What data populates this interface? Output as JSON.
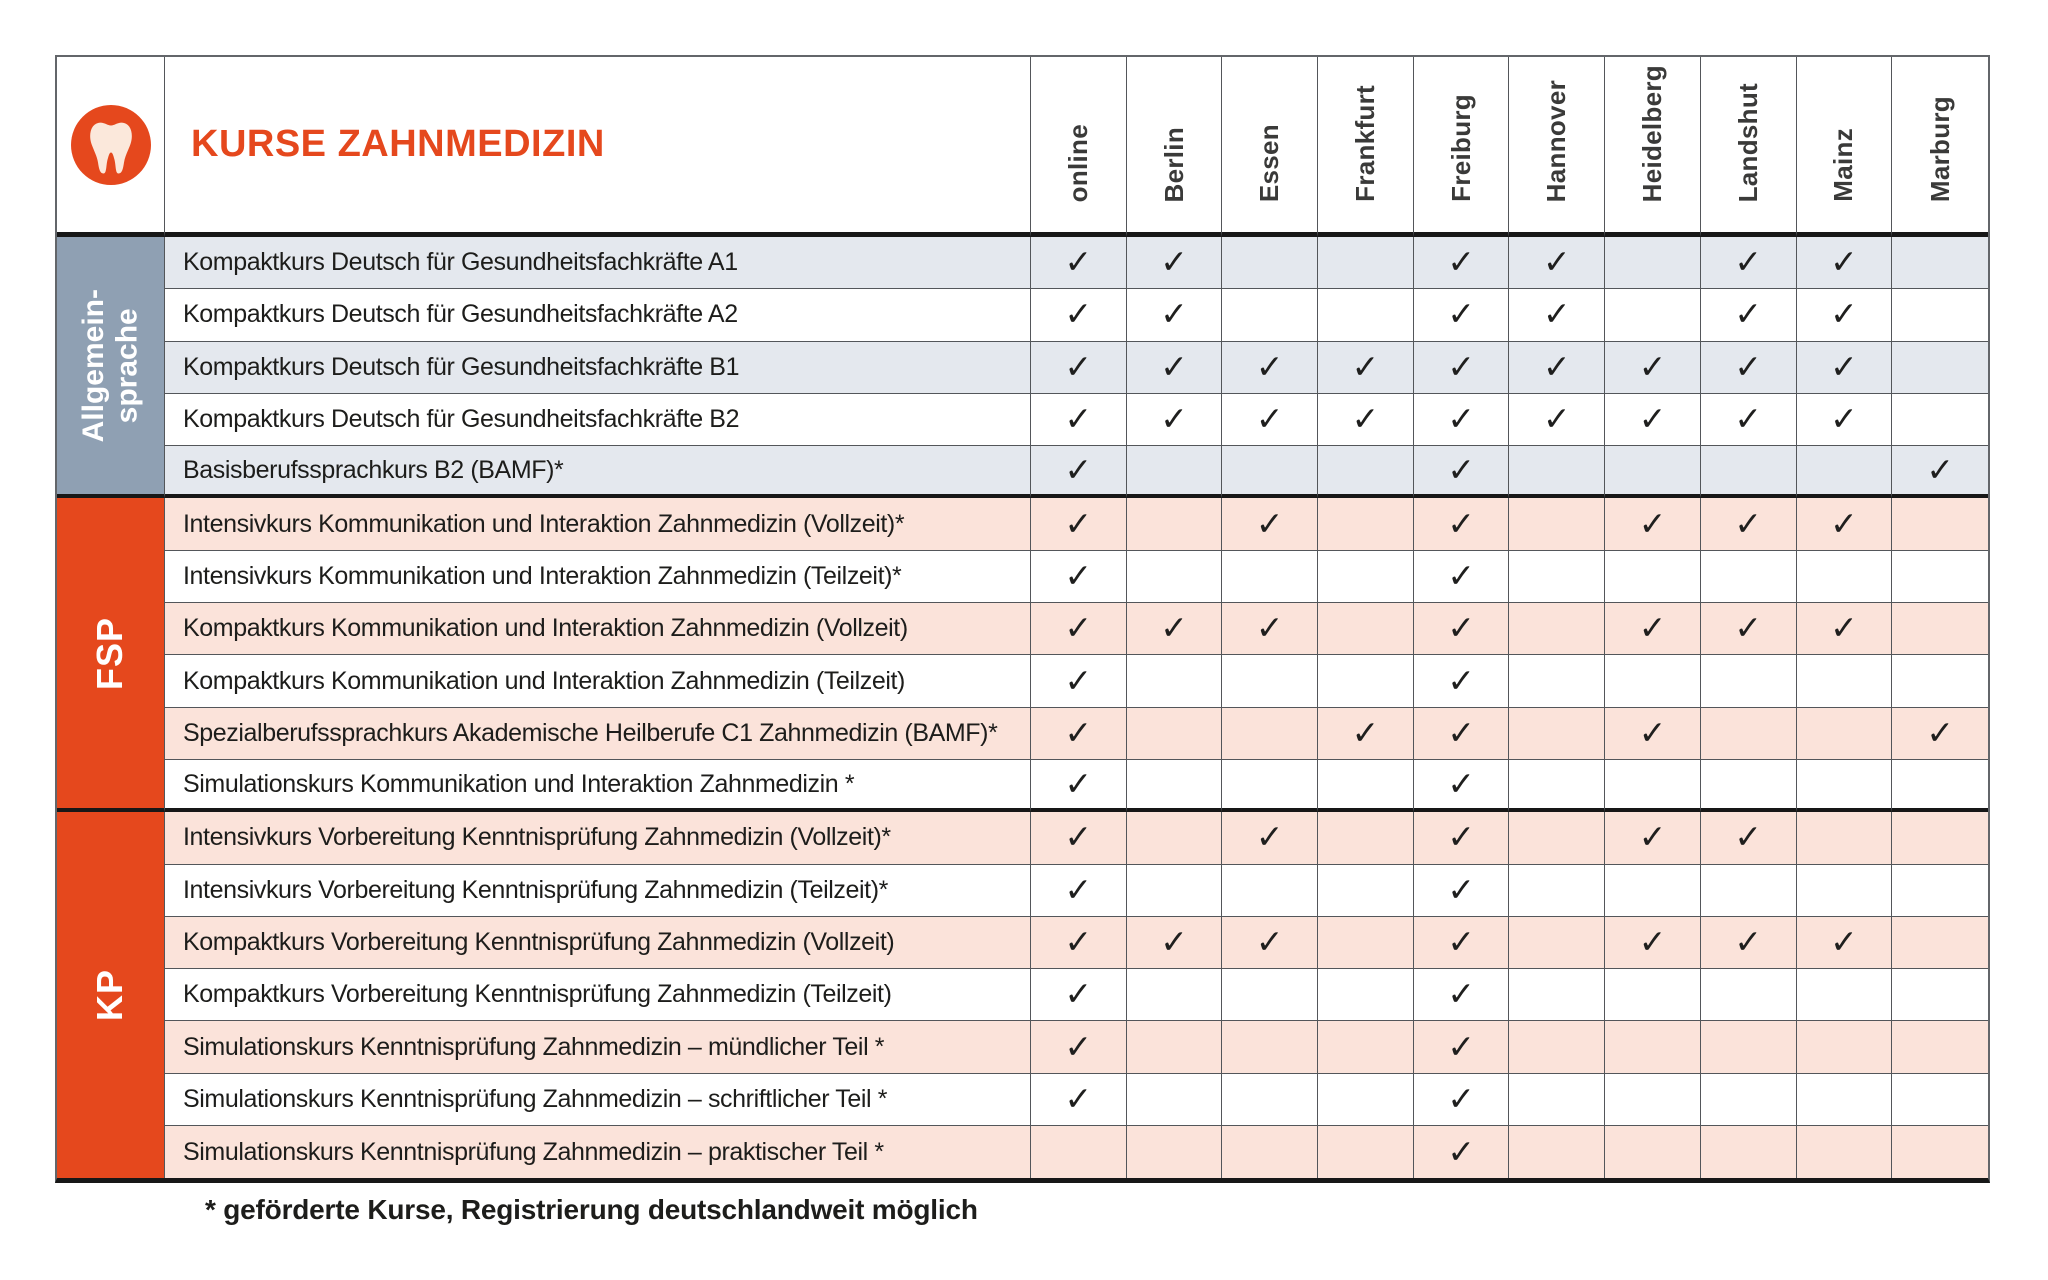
{
  "header": {
    "title": "KURSE ZAHNMEDIZIN",
    "icon": "tooth-icon",
    "cities": [
      "online",
      "Berlin",
      "Essen",
      "Frankfurt",
      "Freiburg",
      "Hannover",
      "Heidelberg",
      "Landshut",
      "Mainz",
      "Marburg"
    ]
  },
  "check_glyph": "✓",
  "groups": [
    {
      "label": "Allgemein-\nsprache",
      "label_lines": [
        "Allgemein-",
        "sprache"
      ],
      "color": "#8fa0b3",
      "row_tint": "#e4e8ee",
      "rows": [
        {
          "label": "Kompaktkurs Deutsch für Gesundheitsfachkräfte A1",
          "checks": [
            1,
            1,
            0,
            0,
            1,
            1,
            0,
            1,
            1,
            0
          ]
        },
        {
          "label": "Kompaktkurs Deutsch für Gesundheitsfachkräfte A2",
          "checks": [
            1,
            1,
            0,
            0,
            1,
            1,
            0,
            1,
            1,
            0
          ]
        },
        {
          "label": "Kompaktkurs Deutsch für Gesundheitsfachkräfte B1",
          "checks": [
            1,
            1,
            1,
            1,
            1,
            1,
            1,
            1,
            1,
            0
          ]
        },
        {
          "label": "Kompaktkurs Deutsch für Gesundheitsfachkräfte B2",
          "checks": [
            1,
            1,
            1,
            1,
            1,
            1,
            1,
            1,
            1,
            0
          ]
        },
        {
          "label": "Basisberufssprachkurs B2 (BAMF)*",
          "checks": [
            1,
            0,
            0,
            0,
            1,
            0,
            0,
            0,
            0,
            1
          ]
        }
      ]
    },
    {
      "label": "FSP",
      "label_lines": [
        "FSP"
      ],
      "color": "#e5481d",
      "row_tint": "#fbe3da",
      "rows": [
        {
          "label": "Intensivkurs Kommunikation und Interaktion Zahnmedizin (Vollzeit)*",
          "checks": [
            1,
            0,
            1,
            0,
            1,
            0,
            1,
            1,
            1,
            0
          ]
        },
        {
          "label": "Intensivkurs Kommunikation und Interaktion Zahnmedizin (Teilzeit)*",
          "checks": [
            1,
            0,
            0,
            0,
            1,
            0,
            0,
            0,
            0,
            0
          ]
        },
        {
          "label": "Kompaktkurs Kommunikation und Interaktion Zahnmedizin (Vollzeit)",
          "checks": [
            1,
            1,
            1,
            0,
            1,
            0,
            1,
            1,
            1,
            0
          ]
        },
        {
          "label": "Kompaktkurs Kommunikation und Interaktion Zahnmedizin (Teilzeit)",
          "checks": [
            1,
            0,
            0,
            0,
            1,
            0,
            0,
            0,
            0,
            0
          ]
        },
        {
          "label": "Spezialberufssprachkurs Akademische Heilberufe C1 Zahnmedizin (BAMF)*",
          "checks": [
            1,
            0,
            0,
            1,
            1,
            0,
            1,
            0,
            0,
            1
          ]
        },
        {
          "label": "Simulationskurs Kommunikation und Interaktion Zahnmedizin *",
          "checks": [
            1,
            0,
            0,
            0,
            1,
            0,
            0,
            0,
            0,
            0
          ]
        }
      ]
    },
    {
      "label": "KP",
      "label_lines": [
        "KP"
      ],
      "color": "#e5481d",
      "row_tint": "#fbe3da",
      "rows": [
        {
          "label": "Intensivkurs Vorbereitung Kenntnisprüfung Zahnmedizin (Vollzeit)*",
          "checks": [
            1,
            0,
            1,
            0,
            1,
            0,
            1,
            1,
            0,
            0
          ]
        },
        {
          "label": "Intensivkurs Vorbereitung Kenntnisprüfung Zahnmedizin (Teilzeit)*",
          "checks": [
            1,
            0,
            0,
            0,
            1,
            0,
            0,
            0,
            0,
            0
          ]
        },
        {
          "label": "Kompaktkurs Vorbereitung Kenntnisprüfung Zahnmedizin (Vollzeit)",
          "checks": [
            1,
            1,
            1,
            0,
            1,
            0,
            1,
            1,
            1,
            0
          ]
        },
        {
          "label": "Kompaktkurs Vorbereitung Kenntnisprüfung Zahnmedizin (Teilzeit)",
          "checks": [
            1,
            0,
            0,
            0,
            1,
            0,
            0,
            0,
            0,
            0
          ]
        },
        {
          "label": "Simulationskurs Kenntnisprüfung Zahnmedizin – mündlicher Teil *",
          "checks": [
            1,
            0,
            0,
            0,
            1,
            0,
            0,
            0,
            0,
            0
          ]
        },
        {
          "label": "Simulationskurs Kenntnisprüfung Zahnmedizin – schriftlicher Teil *",
          "checks": [
            1,
            0,
            0,
            0,
            1,
            0,
            0,
            0,
            0,
            0
          ]
        },
        {
          "label": "Simulationskurs Kenntnisprüfung Zahnmedizin – praktischer Teil *",
          "checks": [
            0,
            0,
            0,
            0,
            1,
            0,
            0,
            0,
            0,
            0
          ]
        }
      ]
    }
  ],
  "footnote": "* geförderte Kurse, Registrierung deutschlandweit möglich",
  "colors": {
    "accent_orange": "#e5481d",
    "group_blue_gray": "#8fa0b3",
    "row_tint_blue": "#e4e8ee",
    "row_tint_salmon": "#fbe3da",
    "grid_line": "#53565a",
    "heavy_line": "#171717",
    "text": "#1d1d1b",
    "city_header_text": "#3a3a39",
    "tooth_fill": "#fbe8db"
  }
}
